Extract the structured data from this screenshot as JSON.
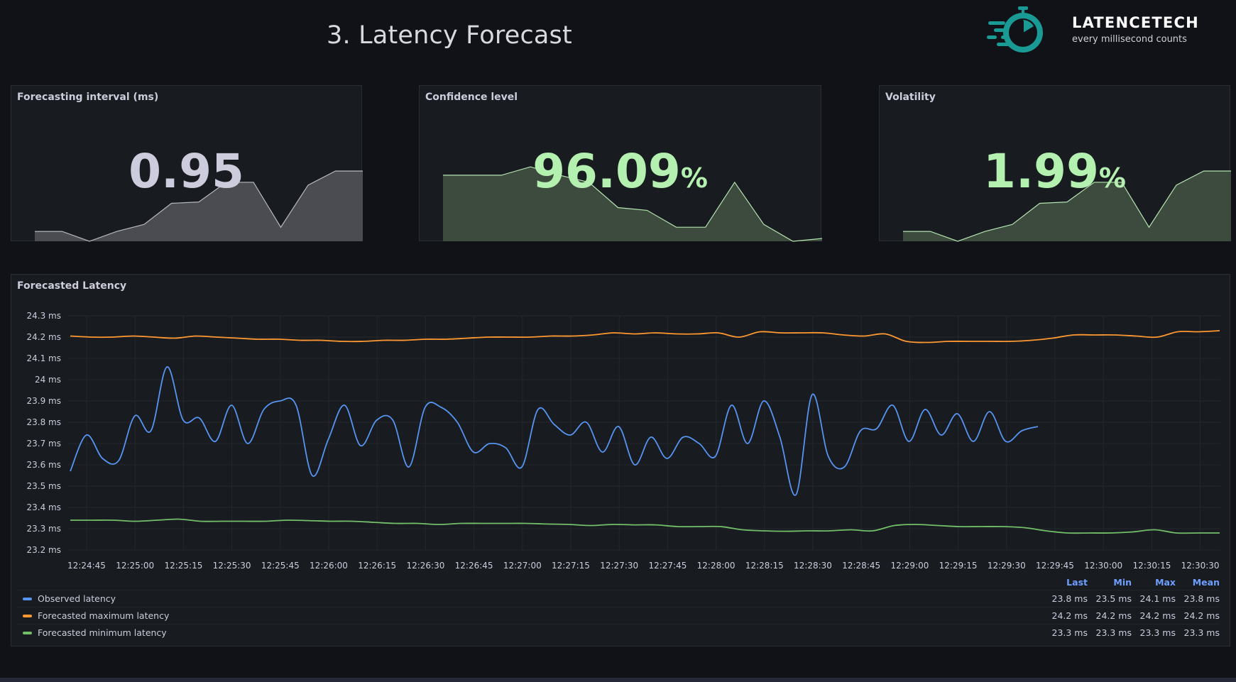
{
  "title": "3. Latency Forecast",
  "brand": {
    "name": "LATENCETECH",
    "tagline": "every millisecond counts",
    "color": "#1a9a95"
  },
  "stats": [
    {
      "title": "Forecasting interval (ms)",
      "value": "0.95",
      "unit": "",
      "color": "#ccccdc",
      "area": "#4a4c52",
      "line": "#b8b9c0",
      "spark": [
        0.07,
        0.07,
        0.0,
        0.07,
        0.12,
        0.27,
        0.28,
        0.42,
        0.42,
        0.1,
        0.4,
        0.5,
        0.5
      ]
    },
    {
      "title": "Confidence level",
      "value": "96.09",
      "unit": "%",
      "color": "#b4f0b0",
      "area": "#3d4a3e",
      "line": "#b4e4b0",
      "spark": [
        0.47,
        0.47,
        0.47,
        0.53,
        0.47,
        0.42,
        0.24,
        0.22,
        0.1,
        0.1,
        0.42,
        0.12,
        0.0,
        0.02
      ]
    },
    {
      "title": "Volatility",
      "value": "1.99",
      "unit": "%",
      "color": "#b4f0b0",
      "area": "#3d4a3e",
      "line": "#b4e4b0",
      "spark": [
        0.07,
        0.07,
        0.0,
        0.07,
        0.12,
        0.27,
        0.28,
        0.42,
        0.42,
        0.1,
        0.4,
        0.5,
        0.5
      ]
    }
  ],
  "timeseries": {
    "title": "Forecasted Latency",
    "y_ticks": [
      "24.3 ms",
      "24.2 ms",
      "24.1 ms",
      "24 ms",
      "23.9 ms",
      "23.8 ms",
      "23.7 ms",
      "23.6 ms",
      "23.5 ms",
      "23.4 ms",
      "23.3 ms",
      "23.2 ms"
    ],
    "x_ticks": [
      "12:24:45",
      "12:25:00",
      "12:25:15",
      "12:25:30",
      "12:25:45",
      "12:26:00",
      "12:26:15",
      "12:26:30",
      "12:26:45",
      "12:27:00",
      "12:27:15",
      "12:27:30",
      "12:27:45",
      "12:28:00",
      "12:28:15",
      "12:28:30",
      "12:28:45",
      "12:29:00",
      "12:29:15",
      "12:29:30",
      "12:29:45",
      "12:30:00",
      "12:30:15",
      "12:30:30"
    ],
    "legend_headers": [
      "Last",
      "Min",
      "Max",
      "Mean"
    ],
    "series": [
      {
        "name": "Observed latency",
        "color": "#5794f2",
        "stats": [
          "23.8 ms",
          "23.5 ms",
          "24.1 ms",
          "23.8 ms"
        ],
        "values": [
          23.57,
          23.74,
          23.63,
          23.62,
          23.83,
          23.76,
          24.06,
          23.81,
          23.82,
          23.71,
          23.88,
          23.7,
          23.86,
          23.9,
          23.88,
          23.55,
          23.72,
          23.88,
          23.69,
          23.81,
          23.81,
          23.59,
          23.87,
          23.87,
          23.8,
          23.66,
          23.7,
          23.68,
          23.59,
          23.86,
          23.79,
          23.74,
          23.8,
          23.66,
          23.78,
          23.6,
          23.73,
          23.63,
          23.73,
          23.7,
          23.64,
          23.88,
          23.7,
          23.9,
          23.73,
          23.46,
          23.93,
          23.64,
          23.59,
          23.76,
          23.77,
          23.88,
          23.71,
          23.86,
          23.74,
          23.84,
          23.71,
          23.85,
          23.71,
          23.76,
          23.78
        ]
      },
      {
        "name": "Forecasted maximum latency",
        "color": "#ff9830",
        "stats": [
          "24.2 ms",
          "24.2 ms",
          "24.2 ms",
          "24.2 ms"
        ],
        "values": [
          24.205,
          24.2,
          24.2,
          24.205,
          24.2,
          24.195,
          24.205,
          24.2,
          24.195,
          24.19,
          24.19,
          24.185,
          24.185,
          24.18,
          24.18,
          24.185,
          24.185,
          24.19,
          24.19,
          24.195,
          24.2,
          24.2,
          24.2,
          24.205,
          24.205,
          24.21,
          24.22,
          24.215,
          24.22,
          24.215,
          24.215,
          24.22,
          24.2,
          24.225,
          24.22,
          24.22,
          24.22,
          24.21,
          24.205,
          24.215,
          24.18,
          24.175,
          24.18,
          24.18,
          24.18,
          24.18,
          24.185,
          24.195,
          24.21,
          24.21,
          24.21,
          24.205,
          24.2,
          24.225,
          24.225,
          24.23
        ]
      },
      {
        "name": "Forecasted minimum latency",
        "color": "#73bf69",
        "stats": [
          "23.3 ms",
          "23.3 ms",
          "23.3 ms",
          "23.3 ms"
        ],
        "values": [
          23.34,
          23.34,
          23.34,
          23.335,
          23.34,
          23.345,
          23.335,
          23.335,
          23.335,
          23.335,
          23.34,
          23.338,
          23.335,
          23.335,
          23.33,
          23.325,
          23.325,
          23.32,
          23.325,
          23.325,
          23.325,
          23.325,
          23.322,
          23.32,
          23.315,
          23.32,
          23.318,
          23.318,
          23.31,
          23.31,
          23.31,
          23.295,
          23.29,
          23.288,
          23.29,
          23.29,
          23.295,
          23.29,
          23.315,
          23.32,
          23.315,
          23.31,
          23.31,
          23.31,
          23.305,
          23.29,
          23.28,
          23.28,
          23.28,
          23.285,
          23.295,
          23.28,
          23.28,
          23.28
        ]
      }
    ]
  }
}
